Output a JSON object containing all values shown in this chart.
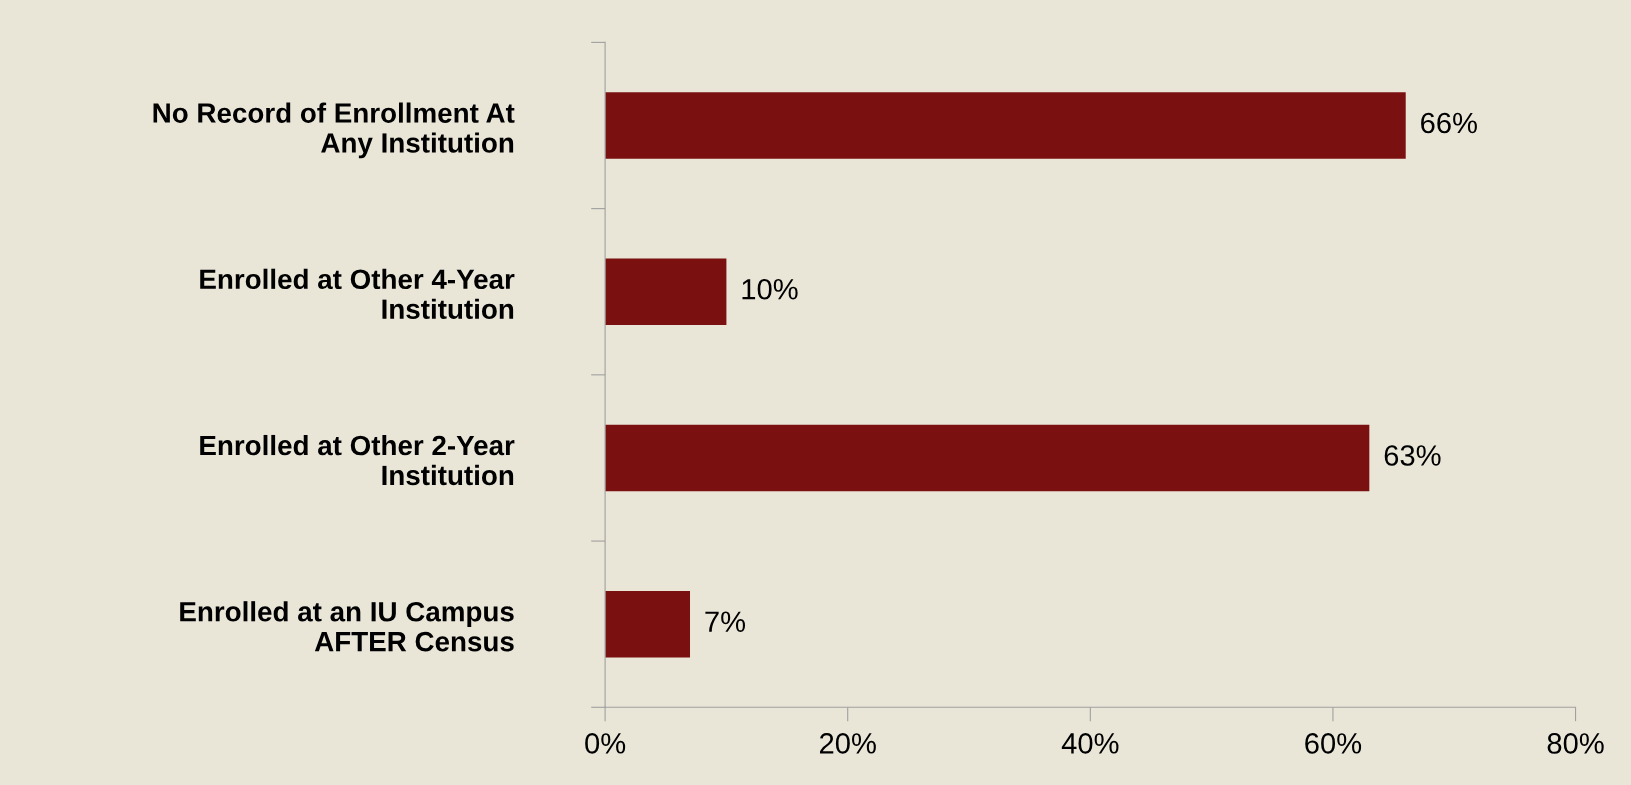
{
  "chart_data": {
    "type": "bar",
    "orientation": "horizontal",
    "categories": [
      "No Record of Enrollment At\nAny Institution",
      "Enrolled at Other 4-Year\nInstitution",
      "Enrolled at Other 2-Year\nInstitution",
      "Enrolled at an IU Campus\nAFTER Census"
    ],
    "values": [
      66,
      10,
      63,
      7
    ],
    "value_labels": [
      "66%",
      "10%",
      "63%",
      "7%"
    ],
    "color": "#7b1010",
    "xlim": [
      0,
      80
    ],
    "xticks": [
      {
        "value": 0,
        "label": "0%"
      },
      {
        "value": 20,
        "label": "20%"
      },
      {
        "value": 40,
        "label": "40%"
      },
      {
        "value": 60,
        "label": "60%"
      },
      {
        "value": 80,
        "label": "80%"
      }
    ],
    "grid": false,
    "legend": false
  }
}
